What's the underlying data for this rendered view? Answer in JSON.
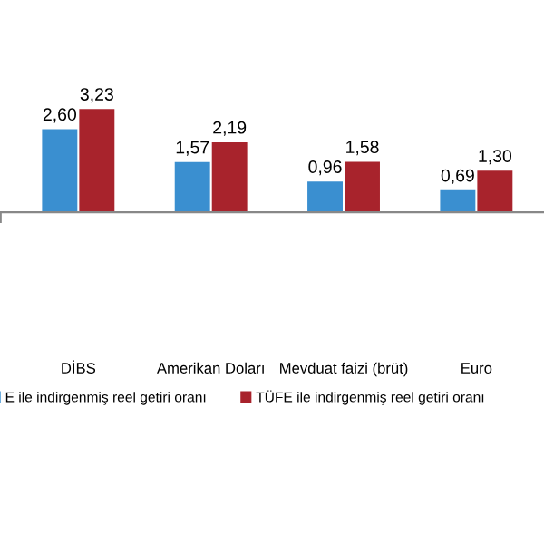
{
  "chart_data": {
    "type": "bar",
    "categories": [
      "DİBS",
      "Amerikan Doları",
      "Mevduat faizi (brüt)",
      "Euro"
    ],
    "series": [
      {
        "name": "E ile indirgenmiş reel getiri oranı",
        "color": "#3a8fd0",
        "values": [
          2.6,
          1.57,
          0.96,
          0.69
        ],
        "value_labels": [
          "2,60",
          "1,57",
          "0,96",
          "0,69"
        ]
      },
      {
        "name": "TÜFE ile indirgenmiş reel getiri oranı",
        "color": "#a8232c",
        "values": [
          3.23,
          2.19,
          1.58,
          1.3
        ],
        "value_labels": [
          "3,23",
          "2,19",
          "1,58",
          "1,30"
        ]
      }
    ],
    "legend": "bottom",
    "grid": false
  }
}
